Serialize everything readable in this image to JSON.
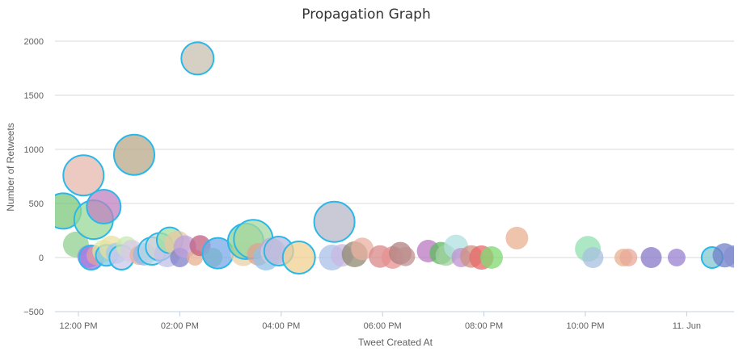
{
  "chart_data": {
    "type": "scatter",
    "title": "Propagation Graph",
    "xlabel": "Tweet Created At",
    "ylabel": "Number of Retweets",
    "ylim": [
      -500,
      2100
    ],
    "y_ticks": [
      -500,
      0,
      500,
      1000,
      1500,
      2000
    ],
    "y_tick_labels": [
      "−500",
      "0",
      "500",
      "1000",
      "1500",
      "2000"
    ],
    "xlim_hours": [
      11.5,
      25.1
    ],
    "x_ticks": [
      {
        "h": 12,
        "label": "12:00 PM"
      },
      {
        "h": 14,
        "label": "02:00 PM"
      },
      {
        "h": 16,
        "label": "04:00 PM"
      },
      {
        "h": 18,
        "label": "06:00 PM"
      },
      {
        "h": 20,
        "label": "08:00 PM"
      },
      {
        "h": 22,
        "label": "10:00 PM"
      },
      {
        "h": 24,
        "label": "11. Jun"
      }
    ],
    "grid": true,
    "legend": "none",
    "colors": {
      "highlight_stroke": "#2ab8e8",
      "grid": "#d8d8d8",
      "axis": "#c0d0e0"
    },
    "points": [
      {
        "x": 11.7,
        "y": 430,
        "r": 22,
        "color": "#7cc87c",
        "hl": true
      },
      {
        "x": 11.95,
        "y": 120,
        "r": 16,
        "color": "#90d090",
        "hl": false
      },
      {
        "x": 12.1,
        "y": 760,
        "r": 25,
        "color": "#e6b8ae",
        "hl": true
      },
      {
        "x": 12.2,
        "y": 10,
        "r": 14,
        "color": "#b090e0",
        "hl": false
      },
      {
        "x": 12.25,
        "y": 0,
        "r": 15,
        "color": "#a078e0",
        "hl": true
      },
      {
        "x": 12.35,
        "y": 20,
        "r": 12,
        "color": "#e0a0a0",
        "hl": false
      },
      {
        "x": 12.3,
        "y": 350,
        "r": 24,
        "color": "#98d898",
        "hl": true
      },
      {
        "x": 12.5,
        "y": 470,
        "r": 21,
        "color": "#c080c0",
        "hl": true
      },
      {
        "x": 12.5,
        "y": 60,
        "r": 14,
        "color": "#d8e8a0",
        "hl": false
      },
      {
        "x": 12.55,
        "y": 20,
        "r": 13,
        "color": "#80c8e8",
        "hl": true
      },
      {
        "x": 12.65,
        "y": 90,
        "r": 15,
        "color": "#e8e0a0",
        "hl": false
      },
      {
        "x": 12.75,
        "y": 40,
        "r": 13,
        "color": "#a0c8f0",
        "hl": false
      },
      {
        "x": 12.85,
        "y": 0,
        "r": 15,
        "color": "#c8c8e8",
        "hl": true
      },
      {
        "x": 12.95,
        "y": 100,
        "r": 13,
        "color": "#c8e8b0",
        "hl": false
      },
      {
        "x": 13.05,
        "y": 60,
        "r": 14,
        "color": "#d8c8e8",
        "hl": false
      },
      {
        "x": 13.1,
        "y": 950,
        "r": 25,
        "color": "#b8a888",
        "hl": true
      },
      {
        "x": 13.2,
        "y": 20,
        "r": 12,
        "color": "#e8b0a0",
        "hl": false
      },
      {
        "x": 13.3,
        "y": 30,
        "r": 14,
        "color": "#90b8e8",
        "hl": false
      },
      {
        "x": 13.45,
        "y": 60,
        "r": 17,
        "color": "#b8d8e8",
        "hl": true
      },
      {
        "x": 13.6,
        "y": 100,
        "r": 17,
        "color": "#d0d0d0",
        "hl": true
      },
      {
        "x": 13.75,
        "y": 30,
        "r": 16,
        "color": "#c0c0e8",
        "hl": false
      },
      {
        "x": 13.8,
        "y": 160,
        "r": 16,
        "color": "#a0e0a0",
        "hl": true
      },
      {
        "x": 13.95,
        "y": 130,
        "r": 16,
        "color": "#e8c8a0",
        "hl": false
      },
      {
        "x": 14.0,
        "y": 0,
        "r": 12,
        "color": "#8080c8",
        "hl": false
      },
      {
        "x": 14.1,
        "y": 100,
        "r": 14,
        "color": "#c0a0e0",
        "hl": false
      },
      {
        "x": 14.3,
        "y": 0,
        "r": 10,
        "color": "#e8b090",
        "hl": false
      },
      {
        "x": 14.35,
        "y": 1840,
        "r": 20,
        "color": "#c8c0b0",
        "hl": true
      },
      {
        "x": 14.4,
        "y": 110,
        "r": 13,
        "color": "#c06080",
        "hl": false
      },
      {
        "x": 14.65,
        "y": 0,
        "r": 12,
        "color": "#80d080",
        "hl": false
      },
      {
        "x": 14.75,
        "y": 40,
        "r": 19,
        "color": "#78a8e8",
        "hl": true
      },
      {
        "x": 15.25,
        "y": 40,
        "r": 16,
        "color": "#e8d0a8",
        "hl": false
      },
      {
        "x": 15.3,
        "y": 150,
        "r": 22,
        "color": "#90d090",
        "hl": true
      },
      {
        "x": 15.45,
        "y": 170,
        "r": 24,
        "color": "#a8d8a0",
        "hl": true
      },
      {
        "x": 15.55,
        "y": 30,
        "r": 14,
        "color": "#e0a090",
        "hl": false
      },
      {
        "x": 15.7,
        "y": 0,
        "r": 16,
        "color": "#90c0e8",
        "hl": false
      },
      {
        "x": 15.8,
        "y": 80,
        "r": 14,
        "color": "#c8a8d8",
        "hl": false
      },
      {
        "x": 15.85,
        "y": 50,
        "r": 16,
        "color": "#d0d0d0",
        "hl": false
      },
      {
        "x": 15.95,
        "y": 60,
        "r": 18,
        "color": "#b8b8e0",
        "hl": true
      },
      {
        "x": 16.35,
        "y": 0,
        "r": 20,
        "color": "#f0d090",
        "hl": true
      },
      {
        "x": 17.05,
        "y": 330,
        "r": 25,
        "color": "#b8b8c8",
        "hl": true
      },
      {
        "x": 17.0,
        "y": 0,
        "r": 16,
        "color": "#a8c0e8",
        "hl": false
      },
      {
        "x": 17.2,
        "y": 20,
        "r": 14,
        "color": "#c8b8e0",
        "hl": false
      },
      {
        "x": 17.45,
        "y": 30,
        "r": 16,
        "color": "#908870",
        "hl": false
      },
      {
        "x": 17.6,
        "y": 80,
        "r": 14,
        "color": "#e8b0a0",
        "hl": false
      },
      {
        "x": 17.95,
        "y": 10,
        "r": 14,
        "color": "#d88888",
        "hl": false
      },
      {
        "x": 18.2,
        "y": 0,
        "r": 14,
        "color": "#e89090",
        "hl": false
      },
      {
        "x": 18.35,
        "y": 40,
        "r": 14,
        "color": "#b08080",
        "hl": false
      },
      {
        "x": 18.45,
        "y": 10,
        "r": 12,
        "color": "#c09090",
        "hl": false
      },
      {
        "x": 18.9,
        "y": 60,
        "r": 14,
        "color": "#b878c0",
        "hl": false
      },
      {
        "x": 19.15,
        "y": 40,
        "r": 14,
        "color": "#60b860",
        "hl": false
      },
      {
        "x": 19.25,
        "y": 20,
        "r": 13,
        "color": "#a0d0a0",
        "hl": false
      },
      {
        "x": 19.45,
        "y": 100,
        "r": 15,
        "color": "#b0e0e0",
        "hl": false
      },
      {
        "x": 19.55,
        "y": 0,
        "r": 12,
        "color": "#c090d0",
        "hl": false
      },
      {
        "x": 19.75,
        "y": 10,
        "r": 14,
        "color": "#d09080",
        "hl": false
      },
      {
        "x": 19.95,
        "y": 0,
        "r": 15,
        "color": "#e86868",
        "hl": false
      },
      {
        "x": 20.15,
        "y": 0,
        "r": 14,
        "color": "#80d870",
        "hl": false
      },
      {
        "x": 20.65,
        "y": 180,
        "r": 14,
        "color": "#e8b090",
        "hl": false
      },
      {
        "x": 22.05,
        "y": 80,
        "r": 16,
        "color": "#90e0b0",
        "hl": false
      },
      {
        "x": 22.15,
        "y": 0,
        "r": 13,
        "color": "#a8c0e0",
        "hl": false
      },
      {
        "x": 22.75,
        "y": 0,
        "r": 11,
        "color": "#e8b090",
        "hl": false
      },
      {
        "x": 22.85,
        "y": 0,
        "r": 11,
        "color": "#e8a898",
        "hl": false
      },
      {
        "x": 23.3,
        "y": 0,
        "r": 13,
        "color": "#8878c8",
        "hl": false
      },
      {
        "x": 23.8,
        "y": 0,
        "r": 11,
        "color": "#9880d0",
        "hl": false
      },
      {
        "x": 24.5,
        "y": 0,
        "r": 13,
        "color": "#80c8d0",
        "hl": true
      },
      {
        "x": 24.75,
        "y": 20,
        "r": 15,
        "color": "#7080c8",
        "hl": false
      },
      {
        "x": 24.95,
        "y": 10,
        "r": 14,
        "color": "#8890d0",
        "hl": false
      }
    ]
  }
}
